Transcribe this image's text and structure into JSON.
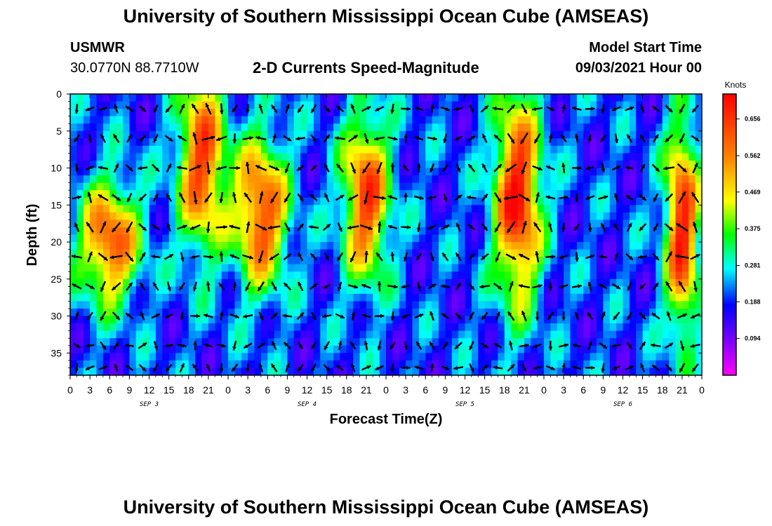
{
  "header": {
    "title": "University of Southern Mississippi Ocean Cube (AMSEAS)",
    "station": "USMWR",
    "coordinates": "30.0770N  88.7710W",
    "subtitle": "2-D Currents Speed-Magnitude",
    "model_start_label": "Model Start Time",
    "model_start_value": "09/03/2021 Hour 00"
  },
  "footer": {
    "title": "University of Southern Mississippi Ocean Cube (AMSEAS)"
  },
  "chart_data": {
    "type": "heatmap",
    "title": "2-D Currents Speed-Magnitude",
    "xlabel": "Forecast Time(Z)",
    "ylabel": "Depth (ft)",
    "x_ticks": [
      "0",
      "3",
      "6",
      "9",
      "12",
      "15",
      "18",
      "21",
      "0",
      "3",
      "6",
      "9",
      "12",
      "15",
      "18",
      "21",
      "0",
      "3",
      "6",
      "9",
      "12",
      "15",
      "18",
      "21",
      "0",
      "3",
      "6",
      "9",
      "12",
      "15",
      "18",
      "21",
      "0"
    ],
    "date_labels": [
      {
        "label": "SEP 3",
        "hour": 12
      },
      {
        "label": "SEP 4",
        "hour": 36
      },
      {
        "label": "SEP 5",
        "hour": 60
      },
      {
        "label": "SEP 6",
        "hour": 84
      }
    ],
    "xlim_hours": [
      0,
      96
    ],
    "y_ticks": [
      0,
      5,
      10,
      15,
      20,
      25,
      30,
      35
    ],
    "ylim_ft": [
      0,
      38
    ],
    "colorbar": {
      "unit": "Knots",
      "ticks": [
        0.656,
        0.562,
        0.469,
        0.375,
        0.281,
        0.188,
        0.094
      ],
      "range": [
        0.0,
        0.72
      ]
    },
    "speed_peaks": [
      {
        "hour": 6,
        "depth": 20,
        "speed": 0.62,
        "width_h": 4.5,
        "depth_spread": 8
      },
      {
        "hour": 20,
        "depth": 9,
        "speed": 0.64,
        "width_h": 3.5,
        "depth_spread": 12
      },
      {
        "hour": 29,
        "depth": 16,
        "speed": 0.64,
        "width_h": 4.0,
        "depth_spread": 10
      },
      {
        "hour": 45,
        "depth": 14,
        "speed": 0.64,
        "width_h": 3.5,
        "depth_spread": 11
      },
      {
        "hour": 68,
        "depth": 14,
        "speed": 0.7,
        "width_h": 3.5,
        "depth_spread": 14
      },
      {
        "hour": 93,
        "depth": 18,
        "speed": 0.68,
        "width_h": 2.5,
        "depth_spread": 14
      }
    ],
    "background_speed": 0.2,
    "vector_columns_hours": [
      1,
      3,
      5,
      7,
      9,
      11,
      13,
      15,
      17,
      19,
      21,
      23,
      25,
      27,
      29,
      31,
      33,
      35,
      37,
      39,
      41,
      43,
      45,
      47,
      49,
      51,
      53,
      55,
      57,
      59,
      61,
      63,
      65,
      67,
      69,
      71,
      73,
      75,
      77,
      79,
      81,
      83,
      85,
      87,
      89,
      91,
      93,
      95
    ],
    "vector_rows_ft": [
      2,
      6,
      10,
      14,
      18,
      22,
      26,
      30,
      34,
      37
    ]
  }
}
